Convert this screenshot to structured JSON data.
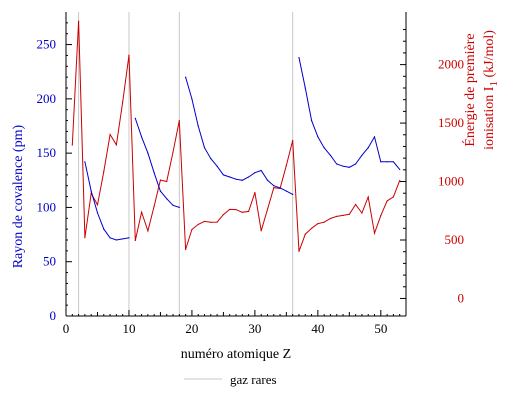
{
  "chart_data": {
    "type": "line",
    "xlabel": "numéro atomique Z",
    "xlim": [
      0,
      54
    ],
    "x_ticks": [
      0,
      10,
      20,
      30,
      40,
      50
    ],
    "vertical_lines_x": [
      2,
      10,
      18,
      36
    ],
    "legend": {
      "label": "gaz rares",
      "placement": "bottom-center",
      "color": "#c8c8c8"
    },
    "left_axis": {
      "label": "Rayon de covalence (pm)",
      "color": "#0000cc",
      "ylim": [
        0,
        280
      ],
      "ticks": [
        0,
        50,
        100,
        150,
        200,
        250
      ]
    },
    "right_axis": {
      "label_line1": "Énergie de première",
      "label_line2_prefix": "ionisation I",
      "label_line2_sub": "1",
      "label_line2_suffix": " (kJ/mol)",
      "color": "#cc0000",
      "ylim": [
        -150,
        2450
      ],
      "ticks": [
        0,
        500,
        1000,
        1500,
        2000
      ]
    },
    "series": [
      {
        "axis": "right",
        "color": "#cc0000",
        "points": [
          [
            1,
            1312
          ],
          [
            2,
            2372
          ],
          [
            3,
            520
          ],
          [
            4,
            899
          ],
          [
            5,
            801
          ],
          [
            6,
            1086
          ],
          [
            7,
            1402
          ],
          [
            8,
            1314
          ],
          [
            9,
            1681
          ],
          [
            10,
            2081
          ],
          [
            11,
            496
          ],
          [
            12,
            738
          ],
          [
            13,
            578
          ],
          [
            14,
            787
          ],
          [
            15,
            1012
          ],
          [
            16,
            1000
          ],
          [
            17,
            1251
          ],
          [
            18,
            1521
          ],
          [
            19,
            419
          ],
          [
            20,
            590
          ],
          [
            21,
            633
          ],
          [
            22,
            659
          ],
          [
            23,
            651
          ],
          [
            24,
            653
          ],
          [
            25,
            717
          ],
          [
            26,
            762
          ],
          [
            27,
            760
          ],
          [
            28,
            737
          ],
          [
            29,
            745
          ],
          [
            30,
            906
          ],
          [
            31,
            579
          ],
          [
            32,
            762
          ],
          [
            33,
            947
          ],
          [
            34,
            941
          ],
          [
            35,
            1140
          ],
          [
            36,
            1351
          ],
          [
            37,
            403
          ],
          [
            38,
            550
          ],
          [
            39,
            600
          ],
          [
            40,
            640
          ],
          [
            41,
            652
          ],
          [
            42,
            684
          ],
          [
            43,
            702
          ],
          [
            44,
            710
          ],
          [
            45,
            720
          ],
          [
            46,
            804
          ],
          [
            47,
            731
          ],
          [
            48,
            868
          ],
          [
            49,
            558
          ],
          [
            50,
            709
          ],
          [
            51,
            834
          ],
          [
            52,
            869
          ],
          [
            53,
            1008
          ]
        ]
      },
      {
        "axis": "left",
        "color": "#0000cc",
        "segments": [
          [
            [
              3,
              142
            ],
            [
              4,
              115
            ],
            [
              5,
              95
            ],
            [
              6,
              80
            ],
            [
              7,
              72
            ],
            [
              8,
              70
            ],
            [
              9,
              71
            ],
            [
              10,
              72
            ]
          ],
          [
            [
              11,
              182
            ],
            [
              12,
              165
            ],
            [
              13,
              150
            ],
            [
              14,
              132
            ],
            [
              15,
              115
            ],
            [
              16,
              108
            ],
            [
              17,
              102
            ],
            [
              18,
              100
            ]
          ],
          [
            [
              19,
              220
            ],
            [
              20,
              200
            ],
            [
              21,
              175
            ],
            [
              22,
              155
            ],
            [
              23,
              145
            ],
            [
              24,
              138
            ],
            [
              25,
              130
            ],
            [
              26,
              128
            ],
            [
              27,
              126
            ],
            [
              28,
              125
            ],
            [
              29,
              128
            ],
            [
              30,
              132
            ],
            [
              31,
              134
            ],
            [
              32,
              125
            ],
            [
              33,
              120
            ],
            [
              34,
              118
            ],
            [
              35,
              115
            ],
            [
              36,
              112
            ]
          ],
          [
            [
              37,
              238
            ],
            [
              38,
              210
            ],
            [
              39,
              180
            ],
            [
              40,
              165
            ],
            [
              41,
              155
            ],
            [
              42,
              148
            ],
            [
              43,
              140
            ],
            [
              44,
              138
            ],
            [
              45,
              137
            ],
            [
              46,
              140
            ],
            [
              47,
              148
            ],
            [
              48,
              155
            ],
            [
              49,
              165
            ],
            [
              50,
              142
            ],
            [
              51,
              142
            ],
            [
              52,
              142
            ],
            [
              53,
              135
            ]
          ]
        ]
      }
    ]
  }
}
